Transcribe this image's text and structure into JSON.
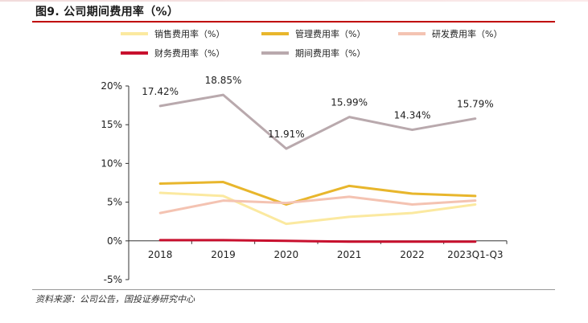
{
  "page": {
    "title": "图9. 公司期间费用率（%）",
    "source": "资料来源：公司公告，国投证券研究中心"
  },
  "colors": {
    "title_rule": "#c00000"
  },
  "chart_data": {
    "type": "line",
    "title": "",
    "xlabel": "",
    "ylabel": "",
    "categories": [
      "2018",
      "2019",
      "2020",
      "2021",
      "2022",
      "2023Q1-Q3"
    ],
    "ylim": [
      -5,
      20
    ],
    "yticks": [
      -5,
      0,
      5,
      10,
      15,
      20
    ],
    "ytick_labels": [
      "-5%",
      "0%",
      "5%",
      "10%",
      "15%",
      "20%"
    ],
    "grid": false,
    "legend_position": "top",
    "series": [
      {
        "name": "销售费用率（%）",
        "color": "#fbe9a0",
        "values": [
          6.2,
          5.8,
          2.2,
          3.1,
          3.6,
          4.7
        ]
      },
      {
        "name": "管理费用率（%）",
        "color": "#e8b62c",
        "values": [
          7.4,
          7.6,
          4.7,
          7.1,
          6.1,
          5.8
        ]
      },
      {
        "name": "研发费用率（%）",
        "color": "#f4c3b2",
        "values": [
          3.6,
          5.2,
          4.9,
          5.7,
          4.7,
          5.2
        ]
      },
      {
        "name": "财务费用率（%）",
        "color": "#c8102e",
        "values": [
          0.1,
          0.1,
          0.0,
          -0.1,
          -0.1,
          -0.1
        ]
      },
      {
        "name": "期间费用率（%）",
        "color": "#b9a9ad",
        "values": [
          17.42,
          18.85,
          11.91,
          15.99,
          14.34,
          15.79
        ],
        "labels": [
          "17.42%",
          "18.85%",
          "11.91%",
          "15.99%",
          "14.34%",
          "15.79%"
        ]
      }
    ]
  }
}
